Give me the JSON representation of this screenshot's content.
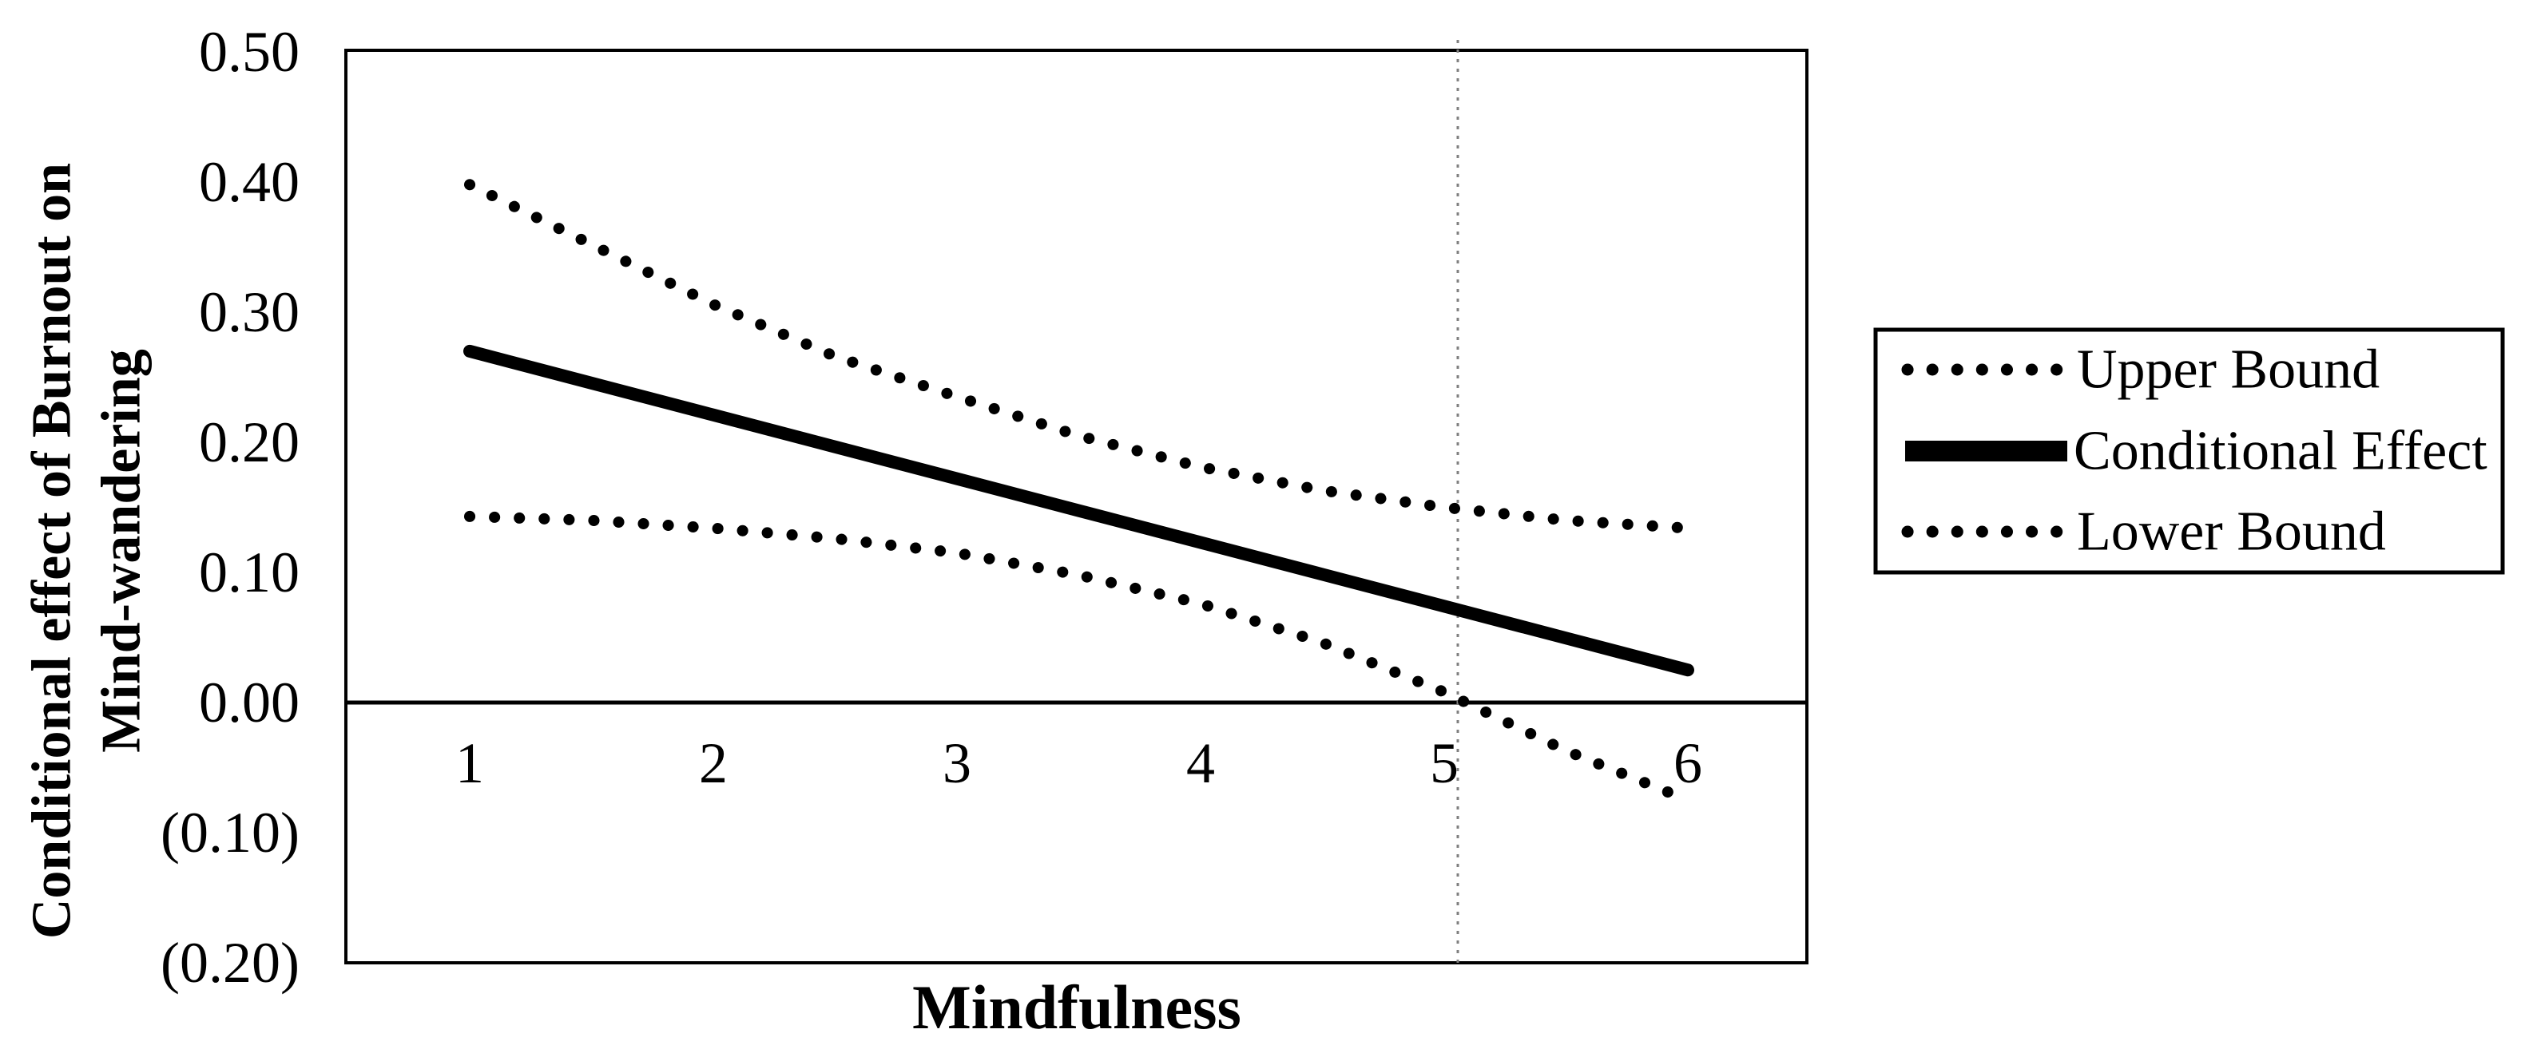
{
  "figure": {
    "background_color": "#ffffff",
    "line_color": "#000000",
    "reference_line_color": "#7f7f7f",
    "x_axis": {
      "title": "Mindfulness",
      "tick_labels": [
        "1",
        "2",
        "3",
        "4",
        "5",
        "6"
      ],
      "tick_values": [
        1,
        2,
        3,
        4,
        5,
        6
      ]
    },
    "y_axis": {
      "title_line1": "Conditional effect of Burnout on",
      "title_line2": "Mind-wandering",
      "tick_labels": [
        "0.50",
        "0.40",
        "0.30",
        "0.20",
        "0.10",
        "0.00",
        "(0.10)",
        "(0.20)"
      ],
      "tick_values": [
        0.5,
        0.4,
        0.3,
        0.2,
        0.1,
        0.0,
        -0.1,
        -0.2
      ]
    },
    "legend": {
      "items": [
        {
          "label": "Upper Bound",
          "style": "dotted"
        },
        {
          "label": "Conditional Effect",
          "style": "solid"
        },
        {
          "label": "Lower Bound",
          "style": "dotted"
        }
      ]
    }
  },
  "chart_data": {
    "type": "line",
    "title": "",
    "xlabel": "Mindfulness",
    "ylabel": "Conditional effect of Burnout on Mind-wandering",
    "xlim": [
      0.49,
      6.49
    ],
    "ylim": [
      -0.2,
      0.5
    ],
    "grid": false,
    "legend_position": "right-outside",
    "x": [
      1,
      1.5,
      2,
      2.5,
      3,
      3.5,
      4,
      4.5,
      5,
      5.5,
      6
    ],
    "series": [
      {
        "name": "Upper Bound",
        "style": "dotted",
        "values": [
          0.398,
          0.352,
          0.306,
          0.266,
          0.235,
          0.205,
          0.181,
          0.163,
          0.15,
          0.14,
          0.134
        ]
      },
      {
        "name": "Conditional Effect",
        "style": "solid",
        "values": [
          0.27,
          0.2455,
          0.221,
          0.1965,
          0.172,
          0.1475,
          0.123,
          0.0985,
          0.074,
          0.0495,
          0.025
        ]
      },
      {
        "name": "Lower Bound",
        "style": "dotted",
        "values": [
          0.143,
          0.14,
          0.134,
          0.126,
          0.115,
          0.098,
          0.076,
          0.046,
          0.008,
          -0.037,
          -0.075
        ]
      }
    ],
    "reference_lines": {
      "horizontal_y": 0.0,
      "vertical_x": 5.06
    }
  }
}
